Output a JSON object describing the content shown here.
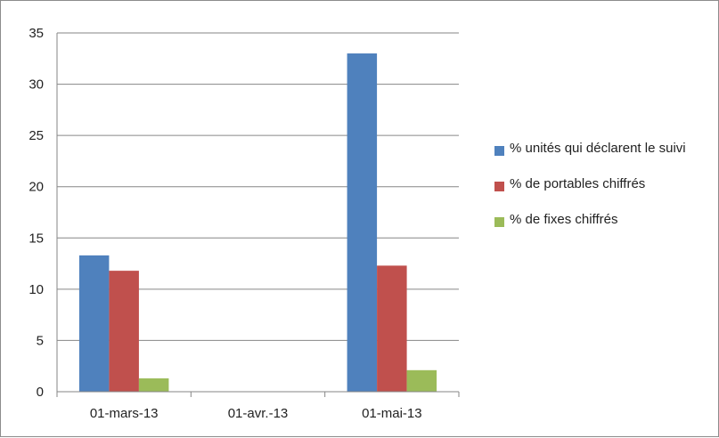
{
  "chart_data": {
    "type": "bar",
    "title": "",
    "xlabel": "",
    "ylabel": "",
    "ylim": [
      0,
      35
    ],
    "yticks": [
      0,
      5,
      10,
      15,
      20,
      25,
      30,
      35
    ],
    "grid": true,
    "legend_position": "right",
    "categories": [
      "01-mars-13",
      "01-avr.-13",
      "01-mai-13"
    ],
    "series": [
      {
        "name": "% unités qui déclarent le suivi",
        "color": "#4f81bd",
        "values": [
          13.3,
          0,
          33
        ]
      },
      {
        "name": "% de portables chiffrés",
        "color": "#c0504d",
        "values": [
          11.8,
          0,
          12.3
        ]
      },
      {
        "name": "% de fixes chiffrés",
        "color": "#9bbb59",
        "values": [
          1.3,
          0,
          2.1
        ]
      }
    ]
  }
}
